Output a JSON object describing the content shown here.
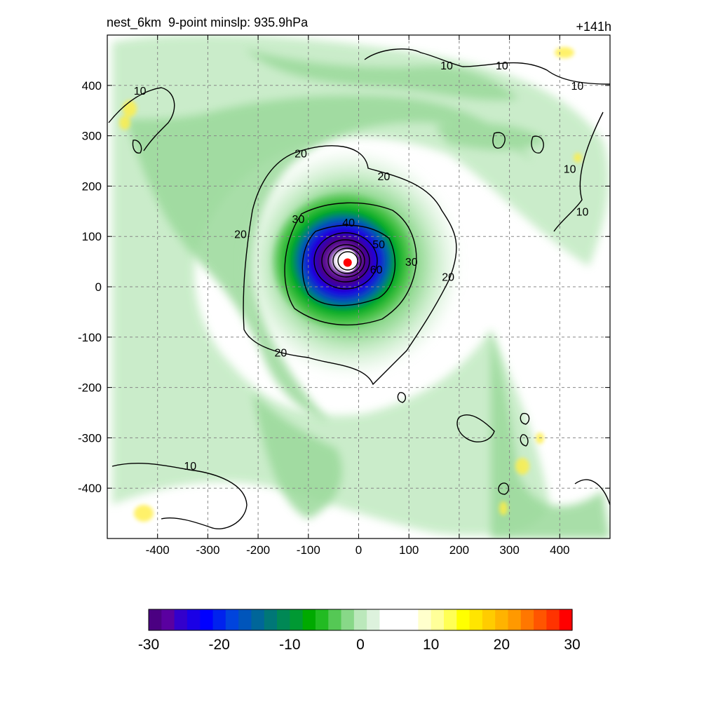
{
  "title": "nest_6km  9-point minslp: 935.9hPa",
  "forecast_hour": "+141h",
  "chart_data": {
    "type": "heatmap",
    "title": "nest_6km  9-point minslp: 935.9hPa",
    "subtitle": "+141h",
    "xlim": [
      -500,
      500
    ],
    "ylim": [
      -500,
      500
    ],
    "xticks": [
      -400,
      -300,
      -200,
      -100,
      0,
      100,
      200,
      300,
      400
    ],
    "yticks": [
      -400,
      -300,
      -200,
      -100,
      0,
      100,
      200,
      300,
      400
    ],
    "grid": true,
    "colorbar": {
      "range": [
        -30,
        30
      ],
      "ticks": [
        -30,
        -20,
        -10,
        0,
        10,
        20,
        30
      ],
      "colors": [
        "#4b0082",
        "#5a00a0",
        "#3300cc",
        "#1a00e6",
        "#0000ff",
        "#0022ee",
        "#0044dd",
        "#0055bb",
        "#006699",
        "#007777",
        "#008855",
        "#009933",
        "#00aa00",
        "#22bb22",
        "#55c855",
        "#88d888",
        "#bbe8bb",
        "#ddf2dd",
        "#ffffff",
        "#ffffff",
        "#ffffff",
        "#ffffcc",
        "#ffff99",
        "#ffff55",
        "#ffff00",
        "#ffe500",
        "#ffcc00",
        "#ffb300",
        "#ff9900",
        "#ff7700",
        "#ff5500",
        "#ff3300",
        "#ff0000"
      ]
    },
    "contour_labels": [
      {
        "text": "10",
        "x": -435,
        "y": 390
      },
      {
        "text": "10",
        "x": 175,
        "y": 440
      },
      {
        "text": "10",
        "x": 285,
        "y": 440
      },
      {
        "text": "10",
        "x": 435,
        "y": 400
      },
      {
        "text": "10",
        "x": 420,
        "y": 235
      },
      {
        "text": "10",
        "x": 445,
        "y": 150
      },
      {
        "text": "10",
        "x": -335,
        "y": -355
      },
      {
        "text": "20",
        "x": -115,
        "y": 265
      },
      {
        "text": "20",
        "x": 50,
        "y": 220
      },
      {
        "text": "20",
        "x": -235,
        "y": 105
      },
      {
        "text": "20",
        "x": 178,
        "y": 20
      },
      {
        "text": "20",
        "x": -155,
        "y": -130
      },
      {
        "text": "30",
        "x": -120,
        "y": 135
      },
      {
        "text": "30",
        "x": 105,
        "y": 50
      },
      {
        "text": "40",
        "x": -20,
        "y": 128
      },
      {
        "text": "50",
        "x": 40,
        "y": 85
      },
      {
        "text": "60",
        "x": 35,
        "y": 35
      }
    ],
    "storm_center": {
      "x": -22,
      "y": 48
    }
  }
}
